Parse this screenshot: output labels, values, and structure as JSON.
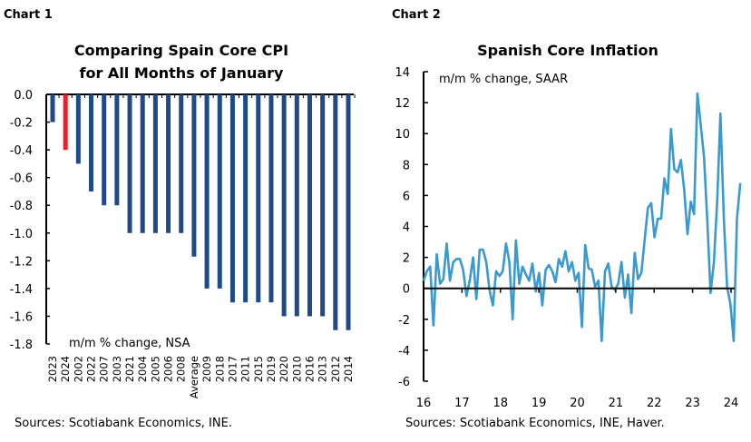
{
  "chart_data": [
    {
      "type": "bar",
      "label": "Chart 1",
      "title": [
        "Comparing Spain Core CPI",
        "for All Months of January"
      ],
      "annotation": "m/m % change, NSA",
      "source": "Sources: Scotiabank Economics, INE.",
      "categories": [
        "2023",
        "2024",
        "2002",
        "2022",
        "2007",
        "2003",
        "2021",
        "2004",
        "2005",
        "2006",
        "2008",
        "Average",
        "2009",
        "2018",
        "2017",
        "2011",
        "2015",
        "2019",
        "2020",
        "2010",
        "2016",
        "2013",
        "2012",
        "2014"
      ],
      "values": [
        -0.2,
        -0.4,
        -0.5,
        -0.7,
        -0.8,
        -0.8,
        -1.0,
        -1.0,
        -1.0,
        -1.0,
        -1.0,
        -1.17,
        -1.4,
        -1.4,
        -1.5,
        -1.5,
        -1.5,
        -1.5,
        -1.6,
        -1.6,
        -1.6,
        -1.6,
        -1.7,
        -1.7
      ],
      "highlight_category": "2024",
      "ylim": [
        -1.8,
        0.0
      ],
      "yticks": [
        "0.0",
        "-0.2",
        "-0.4",
        "-0.6",
        "-0.8",
        "-1.0",
        "-1.2",
        "-1.4",
        "-1.6",
        "-1.8"
      ],
      "colors": {
        "bar": "#1f4a87",
        "highlight": "#e8202a"
      },
      "grid": false
    },
    {
      "type": "line",
      "label": "Chart 2",
      "title": "Spanish Core Inflation",
      "annotation": "m/m % change, SAAR",
      "source": "Sources: Scotiabank Economics, INE, Haver.",
      "x_start": "2016-01",
      "frequency": "monthly",
      "values": [
        0.5,
        1.1,
        1.4,
        -2.4,
        2.2,
        0.3,
        0.6,
        2.9,
        0.5,
        1.7,
        1.9,
        1.9,
        1.2,
        -0.5,
        0.5,
        2.0,
        -0.7,
        2.5,
        2.5,
        1.7,
        -0.1,
        -1.1,
        1.1,
        0.8,
        1.1,
        2.9,
        1.7,
        -2.0,
        3.1,
        0.3,
        1.4,
        0.9,
        0.5,
        1.6,
        -0.2,
        1.0,
        -1.1,
        1.2,
        1.5,
        1.1,
        0.4,
        1.9,
        1.4,
        2.4,
        1.1,
        1.7,
        0.5,
        1.0,
        -2.5,
        2.8,
        1.3,
        1.2,
        0.1,
        0.5,
        -3.4,
        1.1,
        1.6,
        0.1,
        -0.1,
        0.3,
        1.7,
        -0.6,
        0.9,
        -1.6,
        2.3,
        0.6,
        1.0,
        3.1,
        5.2,
        5.5,
        3.3,
        4.5,
        4.5,
        7.1,
        6.1,
        10.3,
        7.7,
        7.5,
        8.3,
        6.4,
        3.5,
        5.6,
        4.8,
        12.6,
        10.6,
        8.5,
        4.4,
        -0.3,
        1.7,
        5.6,
        11.3,
        4.6,
        0.1,
        -1.0,
        -3.4,
        4.5,
        6.8
      ],
      "xlim": [
        16,
        24
      ],
      "xticks": [
        "16",
        "17",
        "18",
        "19",
        "20",
        "21",
        "22",
        "23",
        "24"
      ],
      "ylim": [
        -6,
        14
      ],
      "yticks": [
        "14",
        "12",
        "10",
        "8",
        "6",
        "4",
        "2",
        "0",
        "-2",
        "-4",
        "-6"
      ],
      "colors": {
        "line": "#3a9ad0"
      },
      "grid": false
    }
  ]
}
